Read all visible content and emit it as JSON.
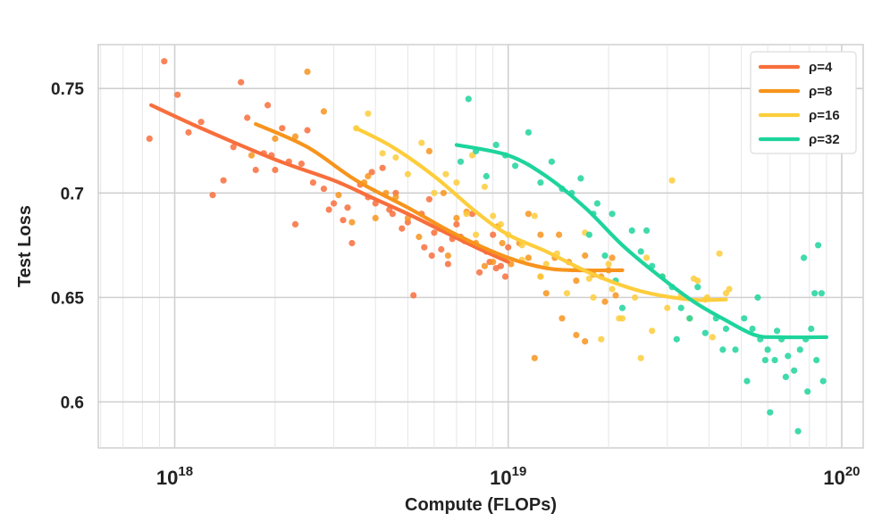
{
  "chart_data": {
    "type": "scatter",
    "title": "",
    "xlabel": "Compute (FLOPs)",
    "ylabel": "Test Loss",
    "xscale": "log",
    "xlim": [
      5.9e+17,
      1.16e+20
    ],
    "ylim": [
      0.578,
      0.771
    ],
    "grid": true,
    "legend_position": "top-right",
    "x_ticks": [
      {
        "value": 1e+18,
        "base": "10",
        "exp": "18"
      },
      {
        "value": 1e+19,
        "base": "10",
        "exp": "19"
      },
      {
        "value": 1e+20,
        "base": "10",
        "exp": "20"
      }
    ],
    "y_ticks": [
      {
        "value": 0.6,
        "label": "0.6"
      },
      {
        "value": 0.65,
        "label": "0.65"
      },
      {
        "value": 0.7,
        "label": "0.7"
      },
      {
        "value": 0.75,
        "label": "0.75"
      }
    ],
    "series": [
      {
        "name": "ρ=4",
        "color": "#f86e3c",
        "fit_x": [
          8.5e+17,
          1.2e+18,
          2e+18,
          3e+18,
          4e+18,
          5e+18,
          6.5e+18,
          8e+18,
          1e+19
        ],
        "fit_y": [
          0.742,
          0.731,
          0.716,
          0.706,
          0.697,
          0.69,
          0.681,
          0.674,
          0.667
        ],
        "points": [
          [
            8.4e+17,
            0.726
          ],
          [
            9.3e+17,
            0.763
          ],
          [
            1.02e+18,
            0.747
          ],
          [
            1.1e+18,
            0.729
          ],
          [
            1.2e+18,
            0.734
          ],
          [
            1.3e+18,
            0.699
          ],
          [
            1.4e+18,
            0.706
          ],
          [
            1.5e+18,
            0.722
          ],
          [
            1.58e+18,
            0.753
          ],
          [
            1.65e+18,
            0.736
          ],
          [
            1.75e+18,
            0.711
          ],
          [
            1.85e+18,
            0.719
          ],
          [
            1.95e+18,
            0.718
          ],
          [
            2e+18,
            0.711
          ],
          [
            2.1e+18,
            0.731
          ],
          [
            2.2e+18,
            0.715
          ],
          [
            2.3e+18,
            0.685
          ],
          [
            2.4e+18,
            0.714
          ],
          [
            2.6e+18,
            0.705
          ],
          [
            2.8e+18,
            0.702
          ],
          [
            3e+18,
            0.695
          ],
          [
            3.2e+18,
            0.687
          ],
          [
            3.4e+18,
            0.676
          ],
          [
            3.6e+18,
            0.704
          ],
          [
            3.8e+18,
            0.698
          ],
          [
            4e+18,
            0.695
          ],
          [
            4.2e+18,
            0.712
          ],
          [
            4.4e+18,
            0.692
          ],
          [
            4.6e+18,
            0.7
          ],
          [
            4.8e+18,
            0.683
          ],
          [
            5e+18,
            0.686
          ],
          [
            5.2e+18,
            0.651
          ],
          [
            5.5e+18,
            0.69
          ],
          [
            5.8e+18,
            0.697
          ],
          [
            6e+18,
            0.681
          ],
          [
            6.3e+18,
            0.673
          ],
          [
            6.6e+18,
            0.666
          ],
          [
            7e+18,
            0.685
          ],
          [
            7.4e+18,
            0.677
          ],
          [
            7.8e+18,
            0.69
          ],
          [
            8.2e+18,
            0.662
          ],
          [
            8.6e+18,
            0.672
          ],
          [
            9e+18,
            0.68
          ],
          [
            9.5e+18,
            0.665
          ],
          [
            1e+19,
            0.674
          ],
          [
            9.2e+18,
            0.664
          ],
          [
            6.8e+18,
            0.678
          ],
          [
            5.6e+18,
            0.674
          ],
          [
            4.5e+18,
            0.69
          ],
          [
            3.9e+18,
            0.71
          ],
          [
            3.3e+18,
            0.693
          ],
          [
            2.9e+18,
            0.692
          ],
          [
            2.5e+18,
            0.73
          ],
          [
            1.9e+18,
            0.742
          ],
          [
            7.2e+18,
            0.679
          ],
          [
            8.8e+18,
            0.667
          ],
          [
            9.8e+18,
            0.66
          ],
          [
            5.9e+18,
            0.67
          ]
        ]
      },
      {
        "name": "ρ=8",
        "color": "#f7941d",
        "fit_x": [
          1.75e+18,
          2.5e+18,
          3.5e+18,
          5e+18,
          7e+18,
          1e+19,
          1.3e+19,
          1.6e+19,
          2.2e+19
        ],
        "fit_y": [
          0.733,
          0.722,
          0.706,
          0.693,
          0.68,
          0.669,
          0.664,
          0.663,
          0.663
        ],
        "points": [
          [
            1.7e+18,
            0.718
          ],
          [
            2e+18,
            0.726
          ],
          [
            2.3e+18,
            0.727
          ],
          [
            2.5e+18,
            0.758
          ],
          [
            2.8e+18,
            0.739
          ],
          [
            3.1e+18,
            0.699
          ],
          [
            3.4e+18,
            0.686
          ],
          [
            3.7e+18,
            0.705
          ],
          [
            4e+18,
            0.688
          ],
          [
            4.3e+18,
            0.7
          ],
          [
            4.6e+18,
            0.698
          ],
          [
            5e+18,
            0.688
          ],
          [
            5.4e+18,
            0.679
          ],
          [
            5.8e+18,
            0.72
          ],
          [
            6.2e+18,
            0.683
          ],
          [
            6.6e+18,
            0.67
          ],
          [
            7e+18,
            0.688
          ],
          [
            7.5e+18,
            0.691
          ],
          [
            8e+18,
            0.676
          ],
          [
            8.5e+18,
            0.665
          ],
          [
            9e+18,
            0.667
          ],
          [
            9.6e+18,
            0.676
          ],
          [
            1.02e+19,
            0.666
          ],
          [
            1.08e+19,
            0.676
          ],
          [
            1.15e+19,
            0.669
          ],
          [
            1.2e+19,
            0.621
          ],
          [
            1.25e+19,
            0.66
          ],
          [
            1.3e+19,
            0.652
          ],
          [
            1.38e+19,
            0.669
          ],
          [
            1.45e+19,
            0.64
          ],
          [
            1.52e+19,
            0.667
          ],
          [
            1.6e+19,
            0.658
          ],
          [
            1.7e+19,
            0.67
          ],
          [
            1.8e+19,
            0.661
          ],
          [
            1.9e+19,
            0.66
          ],
          [
            2e+19,
            0.663
          ],
          [
            2.1e+19,
            0.651
          ],
          [
            1.42e+19,
            0.68
          ],
          [
            1.7e+19,
            0.629
          ],
          [
            1.25e+19,
            0.68
          ],
          [
            9.3e+18,
            0.684
          ],
          [
            1.6e+19,
            0.632
          ],
          [
            2.05e+19,
            0.669
          ],
          [
            1.15e+19,
            0.69
          ],
          [
            6.4e+18,
            0.7
          ],
          [
            3.8e+18,
            0.708
          ],
          [
            1.95e+19,
            0.648
          ]
        ]
      },
      {
        "name": "ρ=16",
        "color": "#fdcd3c",
        "fit_x": [
          3.5e+18,
          4.5e+18,
          6e+18,
          8e+18,
          1e+19,
          1.3e+19,
          1.8e+19,
          2.5e+19,
          3.5e+19,
          4.5e+19
        ],
        "fit_y": [
          0.731,
          0.722,
          0.708,
          0.691,
          0.68,
          0.672,
          0.661,
          0.653,
          0.649,
          0.649
        ],
        "points": [
          [
            3.5e+18,
            0.731
          ],
          [
            3.8e+18,
            0.738
          ],
          [
            4.2e+18,
            0.719
          ],
          [
            4.6e+18,
            0.717
          ],
          [
            5e+18,
            0.709
          ],
          [
            5.5e+18,
            0.724
          ],
          [
            6e+18,
            0.7
          ],
          [
            6.5e+18,
            0.709
          ],
          [
            7e+18,
            0.705
          ],
          [
            7.5e+18,
            0.69
          ],
          [
            8e+18,
            0.68
          ],
          [
            8.5e+18,
            0.703
          ],
          [
            9e+18,
            0.689
          ],
          [
            9.5e+18,
            0.685
          ],
          [
            1e+19,
            0.68
          ],
          [
            1.1e+19,
            0.675
          ],
          [
            1.2e+19,
            0.689
          ],
          [
            1.3e+19,
            0.666
          ],
          [
            1.4e+19,
            0.671
          ],
          [
            1.5e+19,
            0.652
          ],
          [
            1.6e+19,
            0.664
          ],
          [
            1.7e+19,
            0.681
          ],
          [
            1.8e+19,
            0.65
          ],
          [
            1.9e+19,
            0.63
          ],
          [
            2e+19,
            0.666
          ],
          [
            2.2e+19,
            0.64
          ],
          [
            2.4e+19,
            0.65
          ],
          [
            2.5e+19,
            0.621
          ],
          [
            2.7e+19,
            0.634
          ],
          [
            2.9e+19,
            0.66
          ],
          [
            3.1e+19,
            0.706
          ],
          [
            3.3e+19,
            0.651
          ],
          [
            3.5e+19,
            0.64
          ],
          [
            3.7e+19,
            0.658
          ],
          [
            3.9e+19,
            0.649
          ],
          [
            4.1e+19,
            0.631
          ],
          [
            4.3e+19,
            0.671
          ],
          [
            4.5e+19,
            0.652
          ],
          [
            1.75e+19,
            0.659
          ],
          [
            2.15e+19,
            0.64
          ],
          [
            2.6e+19,
            0.669
          ],
          [
            3e+19,
            0.645
          ],
          [
            3.6e+19,
            0.659
          ],
          [
            1.25e+19,
            0.66
          ],
          [
            2.05e+19,
            0.654
          ],
          [
            4.6e+19,
            0.654
          ],
          [
            3.95e+19,
            0.65
          ],
          [
            1.1e+19,
            0.668
          ],
          [
            7.8e+18,
            0.718
          ]
        ]
      },
      {
        "name": "ρ=32",
        "color": "#1ed49c",
        "fit_x": [
          7e+18,
          1e+19,
          1.3e+19,
          1.7e+19,
          2.2e+19,
          2.8e+19,
          3.6e+19,
          4.5e+19,
          5.5e+19,
          6.5e+19,
          9e+19
        ],
        "fit_y": [
          0.723,
          0.718,
          0.708,
          0.693,
          0.675,
          0.661,
          0.648,
          0.639,
          0.632,
          0.631,
          0.631
        ],
        "points": [
          [
            7.2e+18,
            0.715
          ],
          [
            7.6e+18,
            0.745
          ],
          [
            8e+18,
            0.72
          ],
          [
            8.6e+18,
            0.708
          ],
          [
            9.2e+18,
            0.723
          ],
          [
            9.8e+18,
            0.718
          ],
          [
            1.05e+19,
            0.713
          ],
          [
            1.15e+19,
            0.729
          ],
          [
            1.25e+19,
            0.705
          ],
          [
            1.35e+19,
            0.715
          ],
          [
            1.45e+19,
            0.702
          ],
          [
            1.55e+19,
            0.7
          ],
          [
            1.65e+19,
            0.707
          ],
          [
            1.75e+19,
            0.68
          ],
          [
            1.85e+19,
            0.695
          ],
          [
            1.95e+19,
            0.67
          ],
          [
            2.05e+19,
            0.69
          ],
          [
            2.2e+19,
            0.645
          ],
          [
            2.35e+19,
            0.682
          ],
          [
            2.5e+19,
            0.672
          ],
          [
            2.7e+19,
            0.665
          ],
          [
            2.9e+19,
            0.66
          ],
          [
            3.1e+19,
            0.655
          ],
          [
            3.3e+19,
            0.645
          ],
          [
            3.5e+19,
            0.64
          ],
          [
            3.7e+19,
            0.655
          ],
          [
            3.9e+19,
            0.633
          ],
          [
            4.2e+19,
            0.64
          ],
          [
            4.5e+19,
            0.635
          ],
          [
            4.8e+19,
            0.625
          ],
          [
            5.1e+19,
            0.64
          ],
          [
            5.4e+19,
            0.635
          ],
          [
            5.7e+19,
            0.63
          ],
          [
            6e+19,
            0.625
          ],
          [
            6.3e+19,
            0.62
          ],
          [
            6.6e+19,
            0.63
          ],
          [
            6.9e+19,
            0.622
          ],
          [
            7.2e+19,
            0.615
          ],
          [
            7.5e+19,
            0.625
          ],
          [
            7.8e+19,
            0.63
          ],
          [
            8.1e+19,
            0.635
          ],
          [
            8.4e+19,
            0.62
          ],
          [
            8.7e+19,
            0.652
          ],
          [
            5.2e+19,
            0.61
          ],
          [
            6.1e+19,
            0.595
          ],
          [
            7.4e+19,
            0.586
          ],
          [
            8.5e+19,
            0.675
          ],
          [
            7.9e+19,
            0.605
          ],
          [
            6.8e+19,
            0.612
          ],
          [
            5.6e+19,
            0.65
          ],
          [
            4.4e+19,
            0.625
          ],
          [
            3.2e+19,
            0.63
          ],
          [
            2.6e+19,
            0.682
          ],
          [
            2.1e+19,
            0.658
          ],
          [
            1.8e+19,
            0.69
          ],
          [
            8.8e+19,
            0.61
          ],
          [
            7.7e+19,
            0.669
          ],
          [
            8.3e+19,
            0.652
          ],
          [
            6.4e+19,
            0.634
          ],
          [
            5.9e+19,
            0.62
          ]
        ]
      }
    ]
  }
}
